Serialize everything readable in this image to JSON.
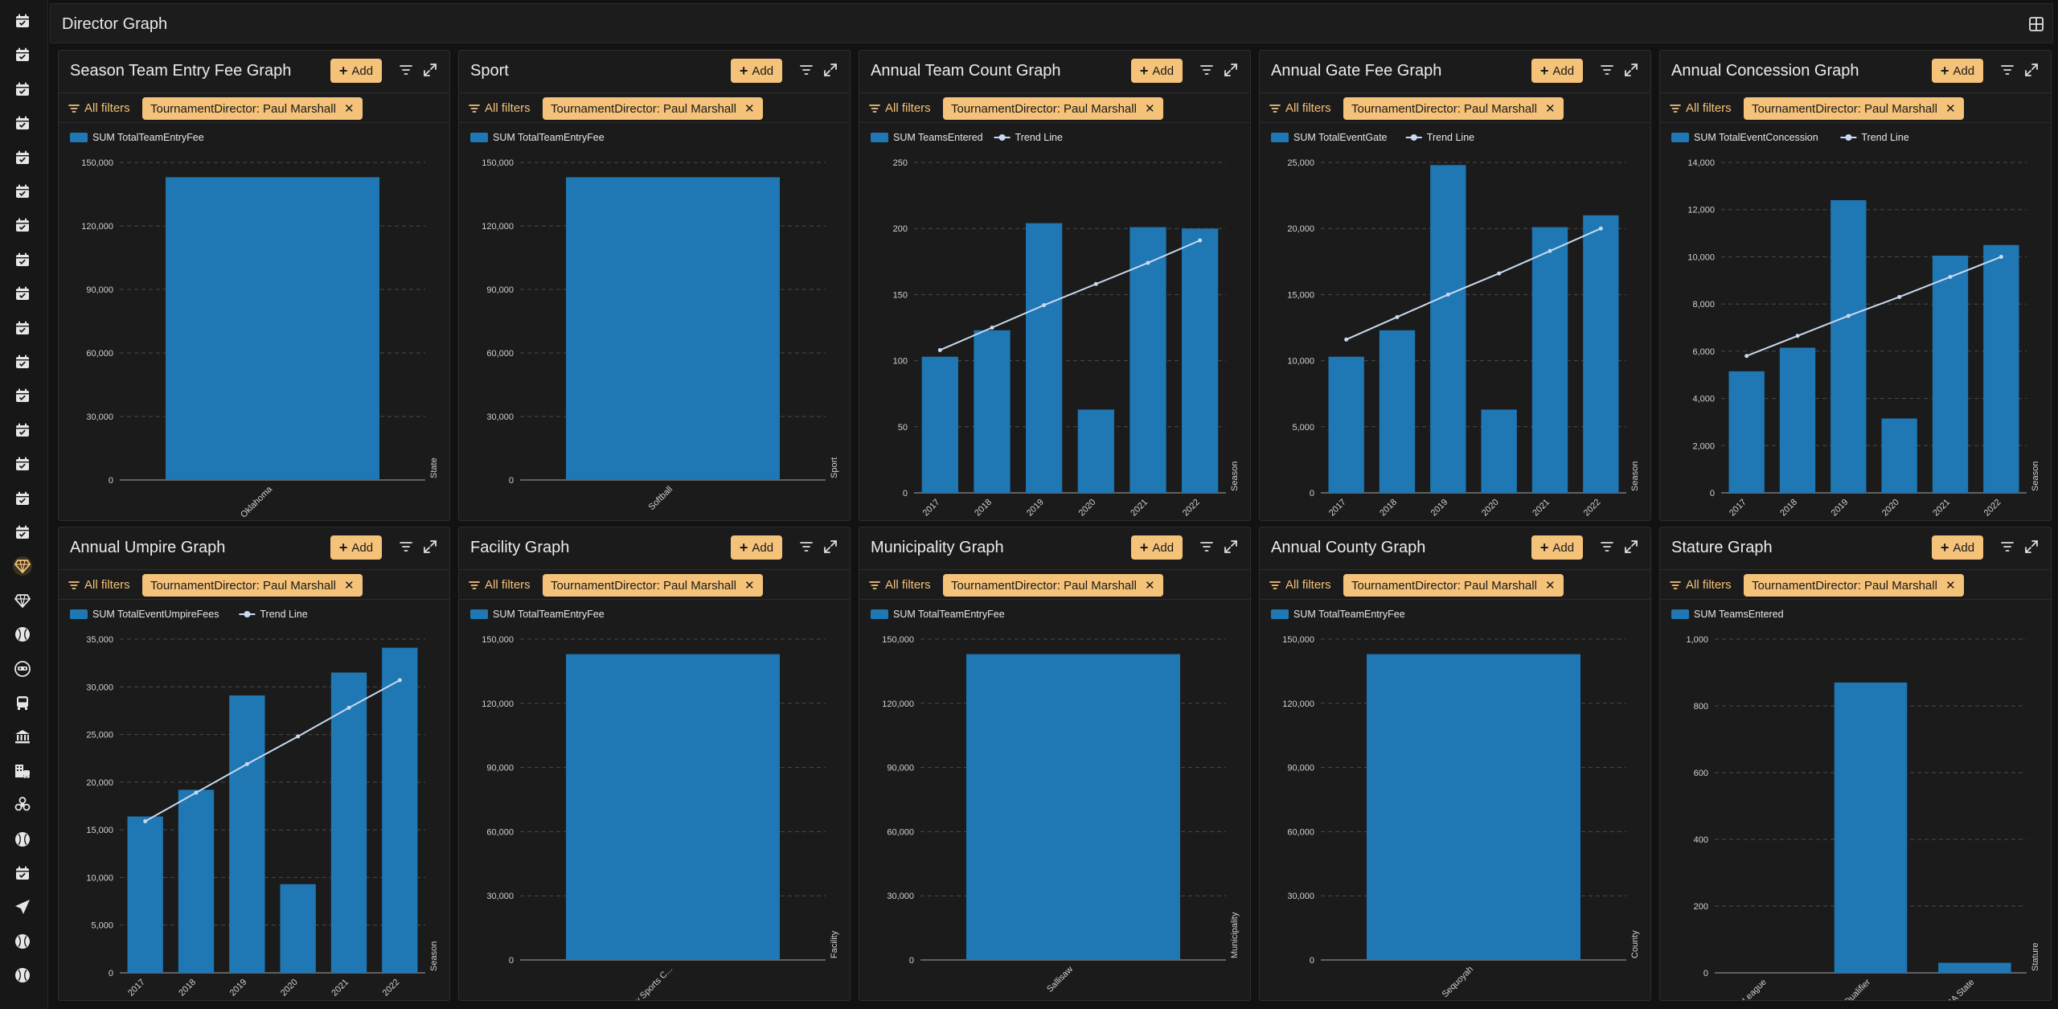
{
  "page": {
    "title": "Director Graph"
  },
  "sidebar": {
    "items": [
      "calendar-icon",
      "calendar-icon",
      "calendar-icon",
      "calendar-icon",
      "calendar-icon",
      "calendar-icon",
      "calendar-icon",
      "calendar-icon",
      "calendar-icon",
      "calendar-icon",
      "calendar-icon",
      "calendar-icon",
      "calendar-icon",
      "calendar-icon",
      "calendar-icon",
      "calendar-icon",
      "gem-icon",
      "gem-icon",
      "baseball-icon",
      "mask-icon",
      "bus-icon",
      "bank-icon",
      "building-icon",
      "biohazard-icon",
      "baseball-icon",
      "calendar-icon",
      "send-icon",
      "baseball-icon",
      "baseball-icon"
    ],
    "active_index": 16,
    "accent": "#f5c27a"
  },
  "common": {
    "add_label": "Add",
    "all_filters_label": "All filters",
    "filter_chip": "TournamentDirector: Paul Marshall",
    "bar_color": "#1f77b4",
    "trend_color": "#c8daf0"
  },
  "panels": [
    {
      "title": "Season Team Entry Fee Graph",
      "chart_data": {
        "type": "bar",
        "series": [
          {
            "name": "SUM TotalTeamEntryFee"
          }
        ],
        "categories": [
          "Oklahoma"
        ],
        "values": [
          143000
        ],
        "yticks": [
          0,
          30000,
          60000,
          90000,
          120000,
          150000
        ],
        "ylim": [
          0,
          150000
        ],
        "xlabel": "State"
      }
    },
    {
      "title": "Sport",
      "chart_data": {
        "type": "bar",
        "series": [
          {
            "name": "SUM TotalTeamEntryFee"
          }
        ],
        "categories": [
          "Softball"
        ],
        "values": [
          143000
        ],
        "yticks": [
          0,
          30000,
          60000,
          90000,
          120000,
          150000
        ],
        "ylim": [
          0,
          150000
        ],
        "xlabel": "Sport"
      }
    },
    {
      "title": "Annual Team Count Graph",
      "chart_data": {
        "type": "bar",
        "series": [
          {
            "name": "SUM TeamsEntered"
          }
        ],
        "trend_name": "Trend Line",
        "categories": [
          "2017",
          "2018",
          "2019",
          "2020",
          "2021",
          "2022"
        ],
        "values": [
          103,
          123,
          204,
          63,
          201,
          200
        ],
        "trend": [
          108,
          125,
          142,
          158,
          174,
          191
        ],
        "yticks": [
          0,
          50,
          100,
          150,
          200,
          250
        ],
        "ylim": [
          0,
          250
        ],
        "xlabel": "Season"
      }
    },
    {
      "title": "Annual Gate Fee Graph",
      "chart_data": {
        "type": "bar",
        "series": [
          {
            "name": "SUM TotalEventGate"
          }
        ],
        "trend_name": "Trend Line",
        "categories": [
          "2017",
          "2018",
          "2019",
          "2020",
          "2021",
          "2022"
        ],
        "values": [
          10300,
          12300,
          24800,
          6300,
          20100,
          21000
        ],
        "trend": [
          11600,
          13300,
          15000,
          16600,
          18300,
          20000
        ],
        "yticks": [
          0,
          5000,
          10000,
          15000,
          20000,
          25000
        ],
        "ylim": [
          0,
          25000
        ],
        "xlabel": "Season"
      }
    },
    {
      "title": "Annual Concession Graph",
      "chart_data": {
        "type": "bar",
        "series": [
          {
            "name": "SUM TotalEventConcession"
          }
        ],
        "trend_name": "Trend Line",
        "categories": [
          "2017",
          "2018",
          "2019",
          "2020",
          "2021",
          "2022"
        ],
        "values": [
          5150,
          6150,
          12400,
          3150,
          10050,
          10500
        ],
        "trend": [
          5800,
          6650,
          7500,
          8300,
          9150,
          10000
        ],
        "yticks": [
          0,
          2000,
          4000,
          6000,
          8000,
          10000,
          12000,
          14000
        ],
        "ylim": [
          0,
          14000
        ],
        "xlabel": "Season"
      }
    },
    {
      "title": "Annual Umpire Graph",
      "chart_data": {
        "type": "bar",
        "series": [
          {
            "name": "SUM TotalEventUmpireFees"
          }
        ],
        "trend_name": "Trend Line",
        "categories": [
          "2017",
          "2018",
          "2019",
          "2020",
          "2021",
          "2022"
        ],
        "values": [
          16400,
          19200,
          29100,
          9300,
          31500,
          34100
        ],
        "trend": [
          15900,
          18900,
          21900,
          24800,
          27800,
          30700
        ],
        "yticks": [
          0,
          5000,
          10000,
          15000,
          20000,
          25000,
          30000,
          35000
        ],
        "ylim": [
          0,
          35000
        ],
        "xlabel": "Season"
      }
    },
    {
      "title": "Facility Graph",
      "chart_data": {
        "type": "bar",
        "series": [
          {
            "name": "SUM TotalTeamEntryFee"
          }
        ],
        "categories": [
          "Sallisaw Sports C..."
        ],
        "values": [
          143000
        ],
        "yticks": [
          0,
          30000,
          60000,
          90000,
          120000,
          150000
        ],
        "ylim": [
          0,
          150000
        ],
        "xlabel": "Facility"
      }
    },
    {
      "title": "Municipality Graph",
      "chart_data": {
        "type": "bar",
        "series": [
          {
            "name": "SUM TotalTeamEntryFee"
          }
        ],
        "categories": [
          "Sallisaw"
        ],
        "values": [
          143000
        ],
        "yticks": [
          0,
          30000,
          60000,
          90000,
          120000,
          150000
        ],
        "ylim": [
          0,
          150000
        ],
        "xlabel": "Municipality"
      }
    },
    {
      "title": "Annual County Graph",
      "chart_data": {
        "type": "bar",
        "series": [
          {
            "name": "SUM TotalTeamEntryFee"
          }
        ],
        "categories": [
          "Sequoyah"
        ],
        "values": [
          143000
        ],
        "yticks": [
          0,
          30000,
          60000,
          90000,
          120000,
          150000
        ],
        "ylim": [
          0,
          150000
        ],
        "xlabel": "County"
      }
    },
    {
      "title": "Stature Graph",
      "chart_data": {
        "type": "bar",
        "series": [
          {
            "name": "SUM TeamsEntered"
          }
        ],
        "categories": [
          "League",
          "State Qualifier",
          "USSSA State"
        ],
        "values": [
          0,
          870,
          30
        ],
        "yticks": [
          0,
          200,
          400,
          600,
          800,
          1000
        ],
        "ylim": [
          0,
          1000
        ],
        "xlabel": "Stature"
      }
    }
  ]
}
